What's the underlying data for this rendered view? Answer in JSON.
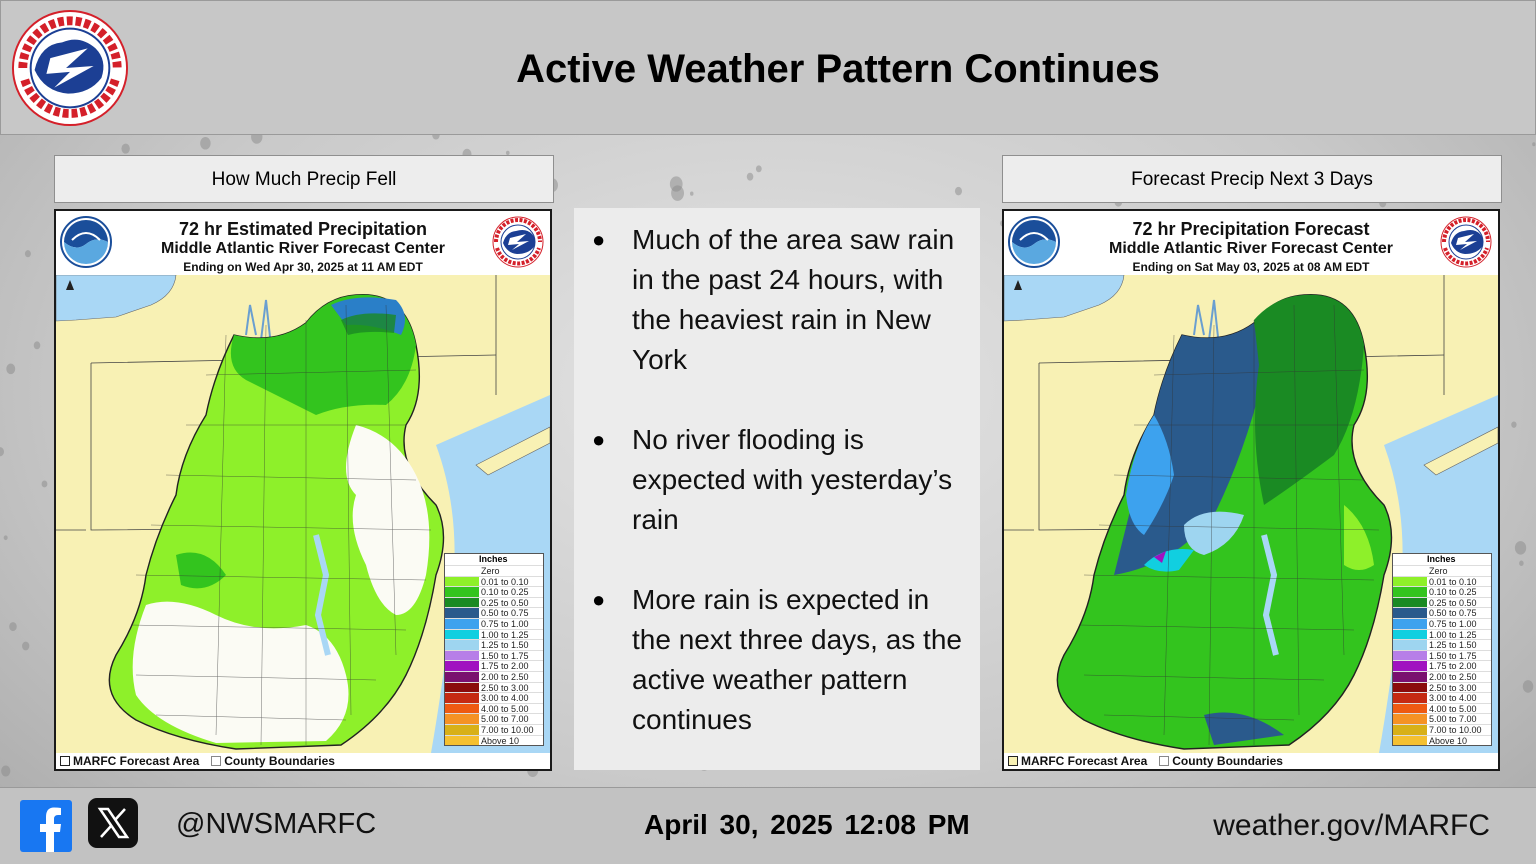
{
  "header": {
    "title": "Active Weather Pattern Continues"
  },
  "left_panel": {
    "label": "How Much Precip Fell",
    "map_title": "72 hr Estimated Precipitation",
    "map_subtitle": "Middle Atlantic River Forecast Center",
    "map_valid": "Ending on Wed Apr 30, 2025 at 11 AM EDT"
  },
  "right_panel": {
    "label": "Forecast Precip Next 3 Days",
    "map_title": "72 hr Precipitation Forecast",
    "map_subtitle": "Middle Atlantic River Forecast Center",
    "map_valid": "Ending on Sat May 03, 2025 at 08 AM EDT"
  },
  "legend": {
    "title": "Inches",
    "items": [
      {
        "label": "Zero",
        "color": "#ffffff"
      },
      {
        "label": "0.01 to 0.10",
        "color": "#8ef02a"
      },
      {
        "label": "0.10 to 0.25",
        "color": "#33c41e"
      },
      {
        "label": "0.25 to 0.50",
        "color": "#1a8a23"
      },
      {
        "label": "0.50 to 0.75",
        "color": "#2a5a8c"
      },
      {
        "label": "0.75 to 1.00",
        "color": "#3da2ee"
      },
      {
        "label": "1.00 to 1.25",
        "color": "#11cfe0"
      },
      {
        "label": "1.25 to 1.50",
        "color": "#9ed5f0"
      },
      {
        "label": "1.50 to 1.75",
        "color": "#b77ee8"
      },
      {
        "label": "1.75 to 2.00",
        "color": "#a012c0"
      },
      {
        "label": "2.00 to 2.50",
        "color": "#7a106f"
      },
      {
        "label": "2.50 to 3.00",
        "color": "#8a0c0c"
      },
      {
        "label": "3.00 to 4.00",
        "color": "#c52a12"
      },
      {
        "label": "4.00 to 5.00",
        "color": "#ee5a12"
      },
      {
        "label": "5.00 to 7.00",
        "color": "#f59225"
      },
      {
        "label": "7.00 to 10.00",
        "color": "#d8b018"
      },
      {
        "label": "Above 10",
        "color": "#f5c030"
      }
    ]
  },
  "map_footer": {
    "forecast_area": "MARFC Forecast Area",
    "county": "County Boundaries"
  },
  "bullets": [
    "Much of the area saw rain in the past 24 hours, with the heaviest rain in New York",
    "No river flooding is expected with yesterday’s rain",
    "More rain is expected in the next three days, as the active weather pattern continues"
  ],
  "footer": {
    "handle": "@NWSMARFC",
    "date": "April 30, 2025",
    "time": "12:08 PM",
    "website": "weather.gov/MARFC"
  }
}
